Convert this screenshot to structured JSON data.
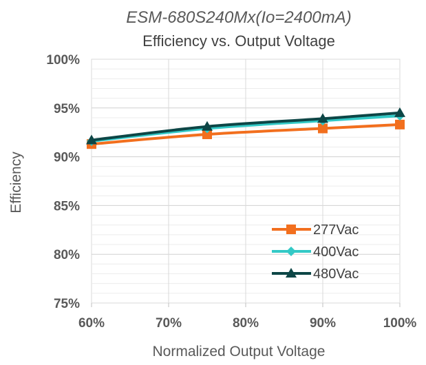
{
  "chart_data": {
    "type": "line",
    "title": "ESM-680S240Mx(Io=2400mA)",
    "subtitle": "Efficiency vs. Output Voltage",
    "xlabel": "Normalized Output Voltage",
    "ylabel": "Efficiency",
    "x": [
      60,
      75,
      90,
      100
    ],
    "x_ticks": [
      "60%",
      "70%",
      "80%",
      "90%",
      "100%"
    ],
    "x_tick_values": [
      60,
      70,
      80,
      90,
      100
    ],
    "xlim": [
      60,
      100
    ],
    "y_ticks": [
      "75%",
      "80%",
      "85%",
      "90%",
      "95%",
      "100%"
    ],
    "y_tick_values": [
      75,
      80,
      85,
      90,
      95,
      100
    ],
    "ylim": [
      75,
      100
    ],
    "grid": true,
    "legend_position": "bottom-right",
    "series": [
      {
        "name": "277Vac",
        "values": [
          91.3,
          92.3,
          92.9,
          93.3
        ],
        "color": "#f26f1e",
        "marker": "square"
      },
      {
        "name": "400Vac",
        "values": [
          91.6,
          92.9,
          93.7,
          94.2
        ],
        "color": "#33c9c6",
        "marker": "diamond"
      },
      {
        "name": "480Vac",
        "values": [
          91.7,
          93.1,
          93.9,
          94.5
        ],
        "color": "#0d4646",
        "marker": "triangle"
      }
    ]
  }
}
